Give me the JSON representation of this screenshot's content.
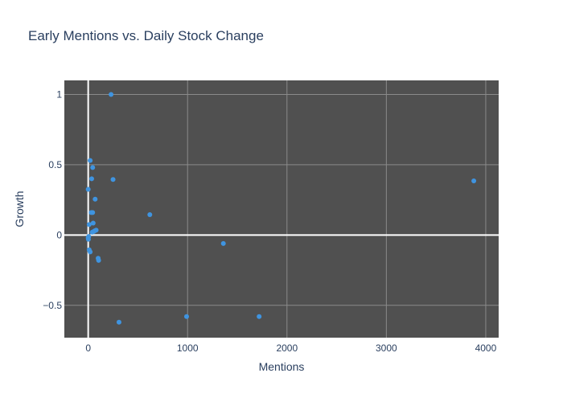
{
  "chart_data": {
    "type": "scatter",
    "title": "Early Mentions vs. Daily Stock Change",
    "xlabel": "Mentions",
    "ylabel": "Growth",
    "xlim": [
      -240,
      4130
    ],
    "ylim": [
      -0.73,
      1.1
    ],
    "xticks": [
      0,
      1000,
      2000,
      3000,
      4000
    ],
    "xtick_labels": [
      "0",
      "1000",
      "2000",
      "3000",
      "4000"
    ],
    "yticks": [
      -0.5,
      0,
      0.5,
      1
    ],
    "ytick_labels": [
      "−0.5",
      "0",
      "0.5",
      "1"
    ],
    "grid": true,
    "legend": "none",
    "colors": {
      "plot_bg": "#505050",
      "marker": "#3f94e0",
      "grid": "#8a8a8a",
      "zero_line": "#ffffff",
      "text": "#2a3f5f"
    },
    "points": [
      {
        "x": 230,
        "y": 1.0
      },
      {
        "x": 20,
        "y": 0.53
      },
      {
        "x": 45,
        "y": 0.48
      },
      {
        "x": 35,
        "y": 0.4
      },
      {
        "x": 250,
        "y": 0.395
      },
      {
        "x": 3880,
        "y": 0.385
      },
      {
        "x": 0,
        "y": 0.325
      },
      {
        "x": 70,
        "y": 0.255
      },
      {
        "x": 30,
        "y": 0.16
      },
      {
        "x": 45,
        "y": 0.16
      },
      {
        "x": 620,
        "y": 0.145
      },
      {
        "x": 50,
        "y": 0.085
      },
      {
        "x": 10,
        "y": 0.075
      },
      {
        "x": 80,
        "y": 0.035
      },
      {
        "x": 65,
        "y": 0.03
      },
      {
        "x": 55,
        "y": 0.025
      },
      {
        "x": 40,
        "y": 0.02
      },
      {
        "x": 5,
        "y": -0.01
      },
      {
        "x": 0,
        "y": -0.02
      },
      {
        "x": 2,
        "y": -0.03
      },
      {
        "x": 1360,
        "y": -0.06
      },
      {
        "x": 10,
        "y": -0.105
      },
      {
        "x": 20,
        "y": -0.12
      },
      {
        "x": 100,
        "y": -0.165
      },
      {
        "x": 105,
        "y": -0.18
      },
      {
        "x": 990,
        "y": -0.58
      },
      {
        "x": 1720,
        "y": -0.58
      },
      {
        "x": 310,
        "y": -0.62
      }
    ]
  }
}
